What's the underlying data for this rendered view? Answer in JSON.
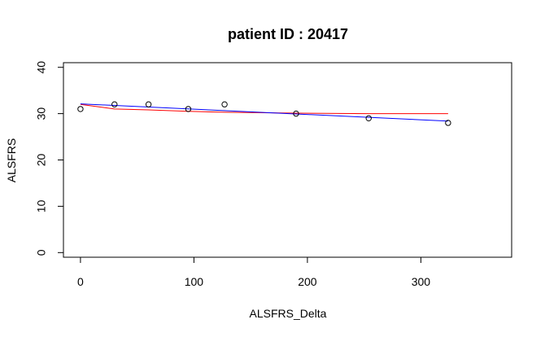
{
  "chart_data": {
    "type": "scatter",
    "title": "patient ID : 20417",
    "xlabel": "ALSFRS_Delta",
    "ylabel": "ALSFRS",
    "xlim": [
      -15,
      380
    ],
    "ylim": [
      -1,
      41
    ],
    "x_ticks": [
      0,
      100,
      200,
      300
    ],
    "y_ticks": [
      0,
      10,
      20,
      30,
      40
    ],
    "grid": false,
    "points": {
      "x": [
        0,
        30,
        60,
        95,
        127,
        190,
        254,
        324
      ],
      "y": [
        31,
        32,
        32,
        31,
        32,
        30,
        29,
        28
      ]
    },
    "series": [
      {
        "color": "#ff0000",
        "x": [
          0,
          30,
          60,
          95,
          127,
          190,
          254,
          324
        ],
        "y": [
          32,
          31,
          30.8,
          30.5,
          30.3,
          30.1,
          30.0,
          30.0
        ]
      },
      {
        "color": "#0000ff",
        "x": [
          0,
          324
        ],
        "y": [
          32.1,
          28.4
        ]
      }
    ]
  }
}
